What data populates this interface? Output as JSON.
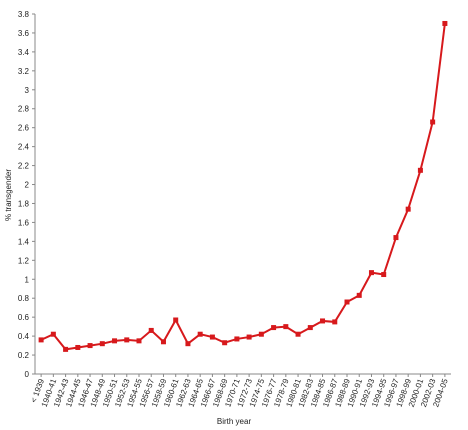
{
  "chart_data": {
    "type": "line",
    "x_label": "Birth year",
    "y_label": "% transgender",
    "categories": [
      "< 1939",
      "1940-41",
      "1942-43",
      "1944-45",
      "1946-47",
      "1948-49",
      "1950-51",
      "1952-53",
      "1954-55",
      "1956-57",
      "1958-59",
      "1960-61",
      "1962-63",
      "1964-65",
      "1966-67",
      "1968-69",
      "1970-71",
      "1972-73",
      "1974-75",
      "1976-77",
      "1978-79",
      "1980-81",
      "1982-83",
      "1984-85",
      "1986-87",
      "1988-89",
      "1990-91",
      "1992-93",
      "1994-95",
      "1996-97",
      "1998-99",
      "2000-01",
      "2002-03",
      "2004-05"
    ],
    "series": [
      {
        "color": "#d7191c",
        "values": [
          0.36,
          0.42,
          0.26,
          0.28,
          0.3,
          0.32,
          0.35,
          0.36,
          0.35,
          0.46,
          0.34,
          0.57,
          0.32,
          0.42,
          0.39,
          0.33,
          0.37,
          0.39,
          0.42,
          0.49,
          0.5,
          0.42,
          0.49,
          0.56,
          0.55,
          0.76,
          0.83,
          1.07,
          1.05,
          1.44,
          1.74,
          2.15,
          2.66,
          3.7
        ]
      }
    ],
    "ylim": [
      0,
      3.8
    ],
    "yticks": [
      0,
      0.2,
      0.4,
      0.6,
      0.8,
      1,
      1.2,
      1.4,
      1.6,
      1.8,
      2,
      2.2,
      2.4,
      2.6,
      2.8,
      3,
      3.2,
      3.4,
      3.6,
      3.8
    ],
    "grid": false
  }
}
